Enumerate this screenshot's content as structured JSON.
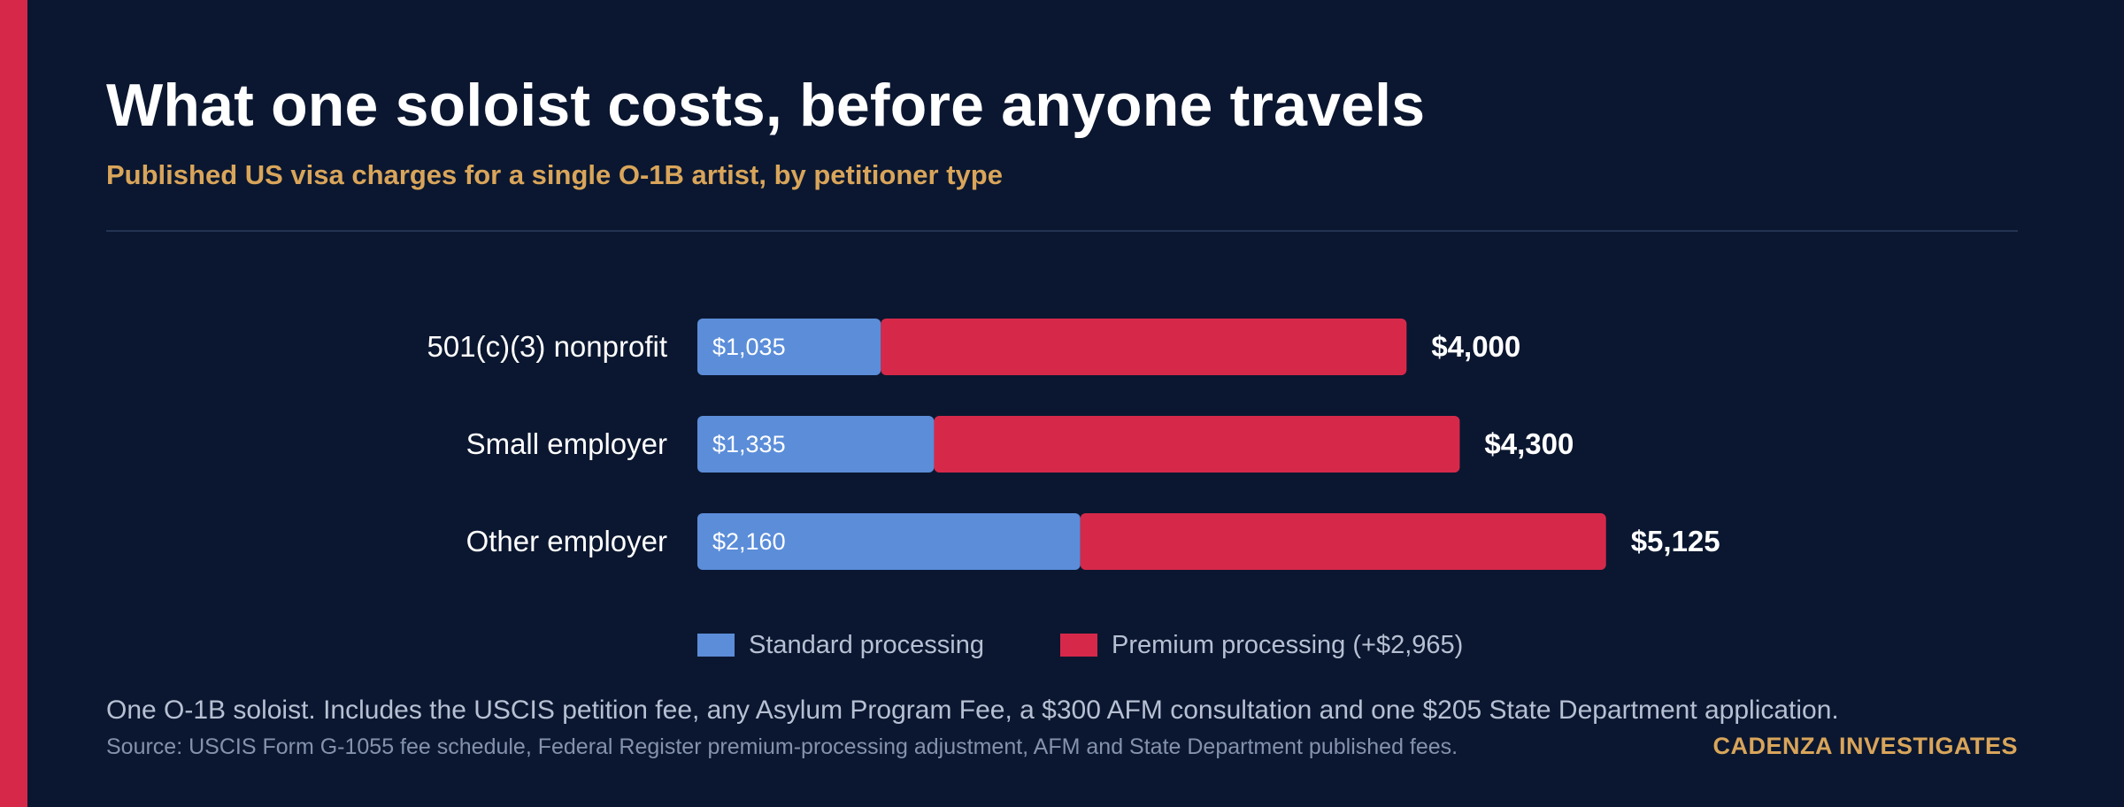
{
  "header": {
    "title": "What one soloist costs, before anyone travels",
    "subtitle": "Published US visa charges for a single O-1B artist, by petitioner type"
  },
  "footer": {
    "note": "One O-1B soloist. Includes the USCIS petition fee, any Asylum Program Fee, a $300 AFM consultation and one $205 State Department application.",
    "source": "Source: USCIS Form G-1055 fee schedule, Federal Register premium-processing adjustment, AFM and State Department published fees.",
    "brand": "CADENZA INVESTIGATES"
  },
  "colors": {
    "background": "#0b1730",
    "accent": "#d6294a",
    "standard": "#5b8dd9",
    "premium": "#d6294a",
    "gold": "#d9a55a"
  },
  "chart_data": {
    "type": "bar",
    "orientation": "horizontal",
    "stacked": true,
    "categories": [
      "501(c)(3) nonprofit",
      "Small employer",
      "Other employer"
    ],
    "series": [
      {
        "name": "Standard processing",
        "values": [
          1035,
          1335,
          2160
        ],
        "labels": [
          "$1,035",
          "$1,335",
          "$2,160"
        ],
        "color": "#5b8dd9"
      },
      {
        "name": "Premium processing (+$2,965)",
        "values": [
          2965,
          2965,
          2965
        ],
        "color": "#d6294a"
      }
    ],
    "totals": [
      4000,
      4300,
      5125
    ],
    "total_labels": [
      "$4,000",
      "$4,300",
      "$5,125"
    ],
    "xlim": [
      0,
      5990
    ],
    "grid": false,
    "legend": "bottom"
  }
}
